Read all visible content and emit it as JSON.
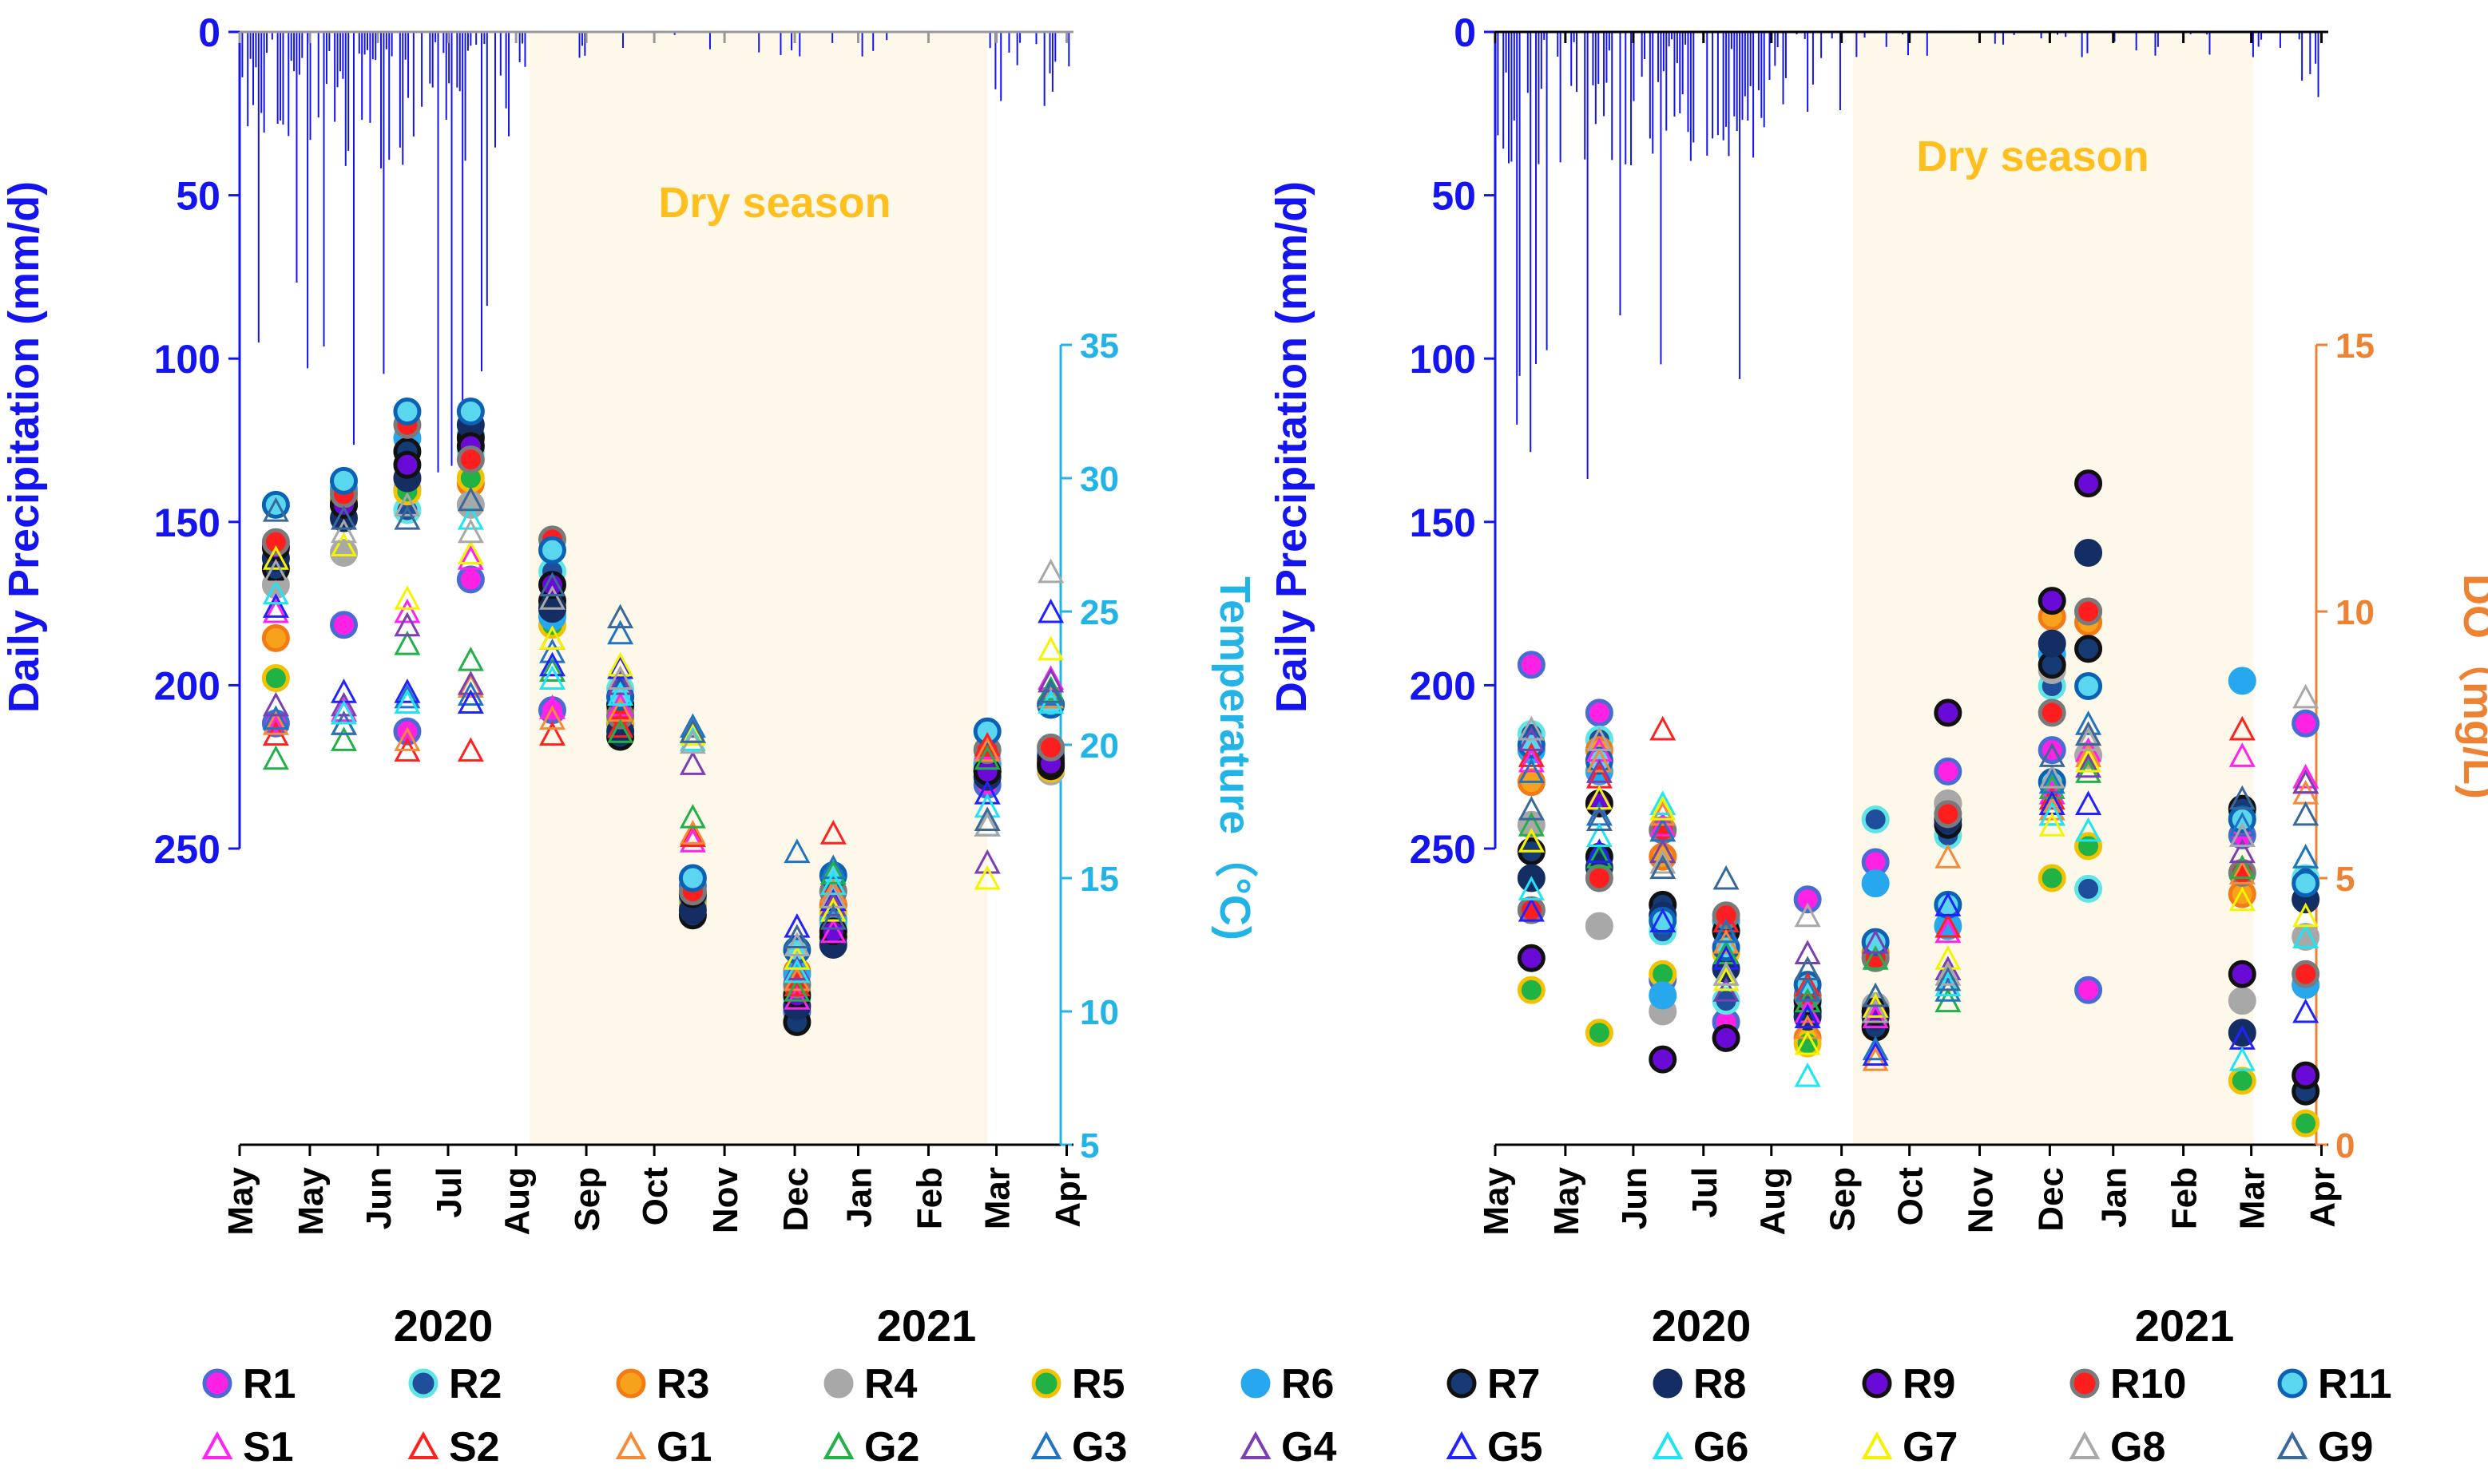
{
  "colors": {
    "precip": "#1414f0",
    "temp": "#22b4e6",
    "do": "#ee8233",
    "dry": "#fdf8ea",
    "dry_text": "#ffc01f",
    "text": "#000000"
  },
  "years": [
    "2020",
    "2021"
  ],
  "legend": {
    "circles": [
      {
        "label": "R1",
        "fill": "#ff22e4",
        "stroke": "#4a6ad6"
      },
      {
        "label": "R2",
        "fill": "#1f4f9c",
        "stroke": "#5ee6e6"
      },
      {
        "label": "R3",
        "fill": "#f7a21c",
        "stroke": "#f47a14"
      },
      {
        "label": "R4",
        "fill": "#a8a8a8",
        "stroke": "#a8a8a8"
      },
      {
        "label": "R5",
        "fill": "#20b244",
        "stroke": "#f2c200"
      },
      {
        "label": "R6",
        "fill": "#27a7ee",
        "stroke": "#27a7ee"
      },
      {
        "label": "R7",
        "fill": "#153a76",
        "stroke": "#111111"
      },
      {
        "label": "R8",
        "fill": "#142e64",
        "stroke": "#142e64"
      },
      {
        "label": "R9",
        "fill": "#6a0ad6",
        "stroke": "#111111"
      },
      {
        "label": "R10",
        "fill": "#ff1e1e",
        "stroke": "#7a7a7a"
      },
      {
        "label": "R11",
        "fill": "#5ad6ee",
        "stroke": "#0b62b4"
      }
    ],
    "triangles": [
      {
        "label": "S1",
        "stroke": "#ff22f0"
      },
      {
        "label": "S2",
        "stroke": "#ff2020"
      },
      {
        "label": "G1",
        "stroke": "#f58a38"
      },
      {
        "label": "G2",
        "stroke": "#22b04a"
      },
      {
        "label": "G3",
        "stroke": "#1f74c4"
      },
      {
        "label": "G4",
        "stroke": "#7a3fb0"
      },
      {
        "label": "G5",
        "stroke": "#2222ff"
      },
      {
        "label": "G6",
        "stroke": "#1ee4f4"
      },
      {
        "label": "G7",
        "stroke": "#f4f400"
      },
      {
        "label": "G8",
        "stroke": "#a8a8a8"
      },
      {
        "label": "G9",
        "stroke": "#3a6898"
      }
    ]
  },
  "chart_data": [
    {
      "type": "scatter",
      "panel": "temperature",
      "title": "",
      "xlabel": "",
      "x_tick_labels": [
        "May",
        "May",
        "Jun",
        "Jul",
        "Aug",
        "Sep",
        "Oct",
        "Nov",
        "Dec",
        "Jan",
        "Feb",
        "Mar",
        "Apr"
      ],
      "x_ticks_days": [
        0,
        31,
        61,
        92,
        122,
        153,
        183,
        214,
        245,
        273,
        304,
        334,
        365
      ],
      "sample_days": [
        16,
        46,
        74,
        102,
        138,
        168,
        200,
        246,
        262,
        330,
        358
      ],
      "dry_season": {
        "label": "Dry season",
        "start_day": 128,
        "end_day": 330
      },
      "precip_axis": {
        "label": "Daily Precipitation (mm/d)",
        "range": [
          0,
          250
        ],
        "ticks": [
          0,
          50,
          100,
          150,
          200,
          250
        ]
      },
      "y2": {
        "label": "Temperature（°C)",
        "range": [
          5,
          35
        ],
        "ticks": [
          5,
          10,
          15,
          20,
          25,
          30,
          35
        ]
      },
      "series": [
        {
          "name": "R1",
          "marker": "circle",
          "values": [
            20.8,
            24.5,
            20.5,
            26.2,
            21.3,
            20.8,
            14.7,
            10.0,
            14.0,
            18.5,
            19.7
          ]
        },
        {
          "name": "R2",
          "marker": "circle",
          "values": [
            27.0,
            29.5,
            28.8,
            31.0,
            26.5,
            22.1,
            15.0,
            10.5,
            13.2,
            19.4,
            19.9
          ]
        },
        {
          "name": "R3",
          "marker": "circle",
          "values": [
            24.0,
            29.2,
            30.0,
            29.8,
            25.2,
            21.3,
            14.2,
            11.5,
            14.0,
            19.3,
            19.4
          ]
        },
        {
          "name": "R4",
          "marker": "circle",
          "values": [
            26.0,
            27.2,
            29.6,
            29.0,
            25.0,
            21.0,
            14.0,
            11.0,
            13.5,
            19.3,
            19.0
          ]
        },
        {
          "name": "R5",
          "marker": "circle",
          "values": [
            22.5,
            29.0,
            29.5,
            30.0,
            24.5,
            20.9,
            14.1,
            10.7,
            13.7,
            19.1,
            19.1
          ]
        },
        {
          "name": "R6",
          "marker": "circle",
          "values": [
            27.5,
            29.6,
            31.5,
            31.6,
            24.8,
            21.8,
            14.3,
            11.4,
            13.4,
            19.2,
            19.6
          ]
        },
        {
          "name": "R7",
          "marker": "circle",
          "values": [
            26.6,
            29.0,
            31.0,
            31.5,
            25.4,
            20.3,
            13.6,
            9.6,
            12.8,
            19.0,
            19.2
          ]
        },
        {
          "name": "R8",
          "marker": "circle",
          "values": [
            27.0,
            28.5,
            30.0,
            32.0,
            25.1,
            20.5,
            13.8,
            10.2,
            12.5,
            18.8,
            19.5
          ]
        },
        {
          "name": "R9",
          "marker": "circle",
          "values": [
            27.4,
            29.0,
            30.5,
            31.2,
            26.0,
            21.5,
            14.4,
            10.6,
            13.0,
            19.0,
            19.3
          ]
        },
        {
          "name": "R10",
          "marker": "circle",
          "values": [
            27.6,
            29.4,
            32.0,
            30.7,
            27.7,
            21.1,
            14.5,
            11.0,
            14.5,
            19.8,
            19.9
          ]
        },
        {
          "name": "R11",
          "marker": "circle",
          "values": [
            29.0,
            29.9,
            32.5,
            32.5,
            27.3,
            21.8,
            15.0,
            12.3,
            15.1,
            20.5,
            21.5
          ]
        },
        {
          "name": "S1",
          "marker": "triangle",
          "values": [
            25.0,
            21.3,
            25.0,
            27.0,
            21.4,
            21.5,
            16.4,
            10.5,
            13.0,
            19.9,
            22.5
          ]
        },
        {
          "name": "S2",
          "marker": "triangle",
          "values": [
            20.4,
            20.8,
            19.8,
            19.8,
            20.4,
            20.7,
            16.6,
            11.0,
            16.7,
            20.0,
            22.0
          ]
        },
        {
          "name": "G1",
          "marker": "triangle",
          "values": [
            20.8,
            21.2,
            20.2,
            22.2,
            21.0,
            21.3,
            16.7,
            11.2,
            14.5,
            19.8,
            21.8
          ]
        },
        {
          "name": "G2",
          "marker": "triangle",
          "values": [
            19.5,
            20.2,
            23.8,
            23.2,
            22.8,
            20.5,
            17.3,
            10.8,
            15.2,
            19.5,
            22.1
          ]
        },
        {
          "name": "G3",
          "marker": "triangle",
          "values": [
            21.0,
            20.8,
            21.8,
            21.9,
            23.5,
            24.2,
            20.7,
            16.0,
            15.4,
            17.0,
            21.9
          ]
        },
        {
          "name": "G4",
          "marker": "triangle",
          "values": [
            21.5,
            21.5,
            24.5,
            22.3,
            24.0,
            22.3,
            19.3,
            11.6,
            14.0,
            15.6,
            22.4
          ]
        },
        {
          "name": "G5",
          "marker": "triangle",
          "values": [
            25.2,
            22.0,
            22.0,
            21.6,
            23.0,
            22.9,
            20.5,
            13.2,
            14.2,
            18.2,
            25.0
          ]
        },
        {
          "name": "G6",
          "marker": "triangle",
          "values": [
            25.7,
            21.2,
            21.6,
            28.5,
            22.5,
            21.9,
            20.2,
            11.5,
            14.8,
            17.7,
            21.6
          ]
        },
        {
          "name": "G7",
          "marker": "triangle",
          "values": [
            27.0,
            27.5,
            25.5,
            27.2,
            24.0,
            23.0,
            20.4,
            12.0,
            13.8,
            15.0,
            23.6
          ]
        },
        {
          "name": "G8",
          "marker": "triangle",
          "values": [
            26.5,
            28.0,
            29.0,
            28.0,
            25.5,
            22.5,
            20.1,
            12.5,
            14.3,
            17.0,
            26.5
          ]
        },
        {
          "name": "G9",
          "marker": "triangle",
          "values": [
            28.8,
            28.5,
            28.5,
            29.2,
            26.0,
            24.8,
            20.5,
            12.8,
            13.5,
            17.2,
            22.0
          ]
        }
      ]
    },
    {
      "type": "scatter",
      "panel": "dissolved-oxygen",
      "title": "",
      "xlabel": "",
      "x_tick_labels": [
        "May",
        "May",
        "Jun",
        "Jul",
        "Aug",
        "Sep",
        "Oct",
        "Nov",
        "Dec",
        "Jan",
        "Feb",
        "Mar",
        "Apr"
      ],
      "x_ticks_days": [
        0,
        31,
        61,
        92,
        122,
        153,
        183,
        214,
        245,
        273,
        304,
        334,
        365
      ],
      "sample_days": [
        16,
        46,
        74,
        102,
        138,
        168,
        200,
        246,
        262,
        330,
        358
      ],
      "dry_season": {
        "label": "Dry season",
        "start_day": 158,
        "end_day": 335
      },
      "precip_axis": {
        "label": "Daily Precipitation (mm/d)",
        "range": [
          0,
          250
        ],
        "ticks": [
          0,
          50,
          100,
          150,
          200,
          250
        ]
      },
      "y2": {
        "label": "DO（mg/L)",
        "range": [
          0,
          15
        ],
        "ticks": [
          0,
          5,
          10,
          15
        ]
      },
      "series": [
        {
          "name": "R1",
          "marker": "circle",
          "values": [
            9.0,
            8.1,
            3.1,
            2.3,
            4.6,
            5.3,
            7.0,
            7.4,
            2.9,
            5.8,
            7.9
          ]
        },
        {
          "name": "R2",
          "marker": "circle",
          "values": [
            7.7,
            7.6,
            4.0,
            2.7,
            2.6,
            6.1,
            5.8,
            8.6,
            4.8,
            6.2,
            5.0
          ]
        },
        {
          "name": "R3",
          "marker": "circle",
          "values": [
            6.8,
            7.4,
            5.4,
            4.2,
            2.0,
            3.6,
            6.4,
            9.9,
            9.8,
            4.7,
            3.0
          ]
        },
        {
          "name": "R4",
          "marker": "circle",
          "values": [
            6.0,
            4.1,
            2.5,
            4.0,
            2.4,
            2.6,
            6.4,
            8.9,
            7.3,
            2.7,
            3.9
          ]
        },
        {
          "name": "R5",
          "marker": "circle",
          "values": [
            2.9,
            2.1,
            3.2,
            3.6,
            1.9,
            2.2,
            4.5,
            5.0,
            5.6,
            1.2,
            0.4
          ]
        },
        {
          "name": "R6",
          "marker": "circle",
          "values": [
            7.4,
            7.0,
            2.8,
            4.2,
            2.7,
            4.9,
            4.1,
            9.2,
            10.0,
            8.7,
            3.0
          ]
        },
        {
          "name": "R7",
          "marker": "circle",
          "values": [
            5.5,
            5.4,
            4.5,
            4.0,
            2.5,
            2.2,
            6.0,
            9.0,
            9.3,
            6.3,
            1.0
          ]
        },
        {
          "name": "R8",
          "marker": "circle",
          "values": [
            5.0,
            5.2,
            4.3,
            3.3,
            2.4,
            2.4,
            6.1,
            9.4,
            11.1,
            2.1,
            4.6
          ]
        },
        {
          "name": "R9",
          "marker": "circle",
          "values": [
            3.5,
            6.4,
            1.6,
            2.0,
            2.7,
            2.5,
            8.1,
            10.2,
            12.4,
            3.2,
            1.3
          ]
        },
        {
          "name": "R10",
          "marker": "circle",
          "values": [
            4.4,
            5.0,
            5.9,
            4.3,
            2.8,
            3.5,
            6.2,
            8.1,
            10.0,
            5.1,
            3.2
          ]
        },
        {
          "name": "R11",
          "marker": "circle",
          "values": [
            7.5,
            7.2,
            4.2,
            3.7,
            3.0,
            3.8,
            4.5,
            6.8,
            8.6,
            6.1,
            4.9
          ]
        },
        {
          "name": "S1",
          "marker": "triangle",
          "values": [
            7.2,
            7.4,
            6.0,
            4.2,
            2.5,
            2.4,
            4.0,
            6.6,
            7.4,
            7.3,
            6.9
          ]
        },
        {
          "name": "S2",
          "marker": "triangle",
          "values": [
            7.3,
            6.9,
            7.8,
            4.2,
            3.0,
            2.5,
            4.1,
            6.5,
            7.7,
            7.8,
            6.8
          ]
        },
        {
          "name": "G1",
          "marker": "triangle",
          "values": [
            5.7,
            7.2,
            6.2,
            3.8,
            2.2,
            1.6,
            5.4,
            6.3,
            7.3,
            5.1,
            6.6
          ]
        },
        {
          "name": "G2",
          "marker": "triangle",
          "values": [
            6.0,
            5.4,
            5.5,
            3.6,
            2.7,
            3.5,
            2.7,
            6.7,
            7.0,
            5.2,
            5.4
          ]
        },
        {
          "name": "G3",
          "marker": "triangle",
          "values": [
            7.0,
            6.2,
            5.9,
            4.0,
            2.9,
            1.8,
            2.9,
            6.8,
            7.9,
            6.0,
            5.4
          ]
        },
        {
          "name": "G4",
          "marker": "triangle",
          "values": [
            7.6,
            7.0,
            5.5,
            2.9,
            3.6,
            3.8,
            3.3,
            6.2,
            7.1,
            5.5,
            6.8
          ]
        },
        {
          "name": "G5",
          "marker": "triangle",
          "values": [
            4.4,
            5.5,
            4.2,
            3.5,
            2.4,
            1.7,
            4.5,
            6.4,
            6.4,
            2.0,
            2.5
          ]
        },
        {
          "name": "G6",
          "marker": "triangle",
          "values": [
            4.8,
            5.8,
            6.4,
            3.2,
            1.3,
            2.8,
            3.0,
            6.2,
            5.9,
            1.6,
            3.9
          ]
        },
        {
          "name": "G7",
          "marker": "triangle",
          "values": [
            5.7,
            6.5,
            6.3,
            3.1,
            1.9,
            2.6,
            3.5,
            6.0,
            7.2,
            4.6,
            4.3
          ]
        },
        {
          "name": "G8",
          "marker": "triangle",
          "values": [
            7.8,
            7.6,
            5.3,
            3.2,
            4.3,
            2.5,
            3.2,
            6.9,
            7.6,
            5.8,
            8.4
          ]
        },
        {
          "name": "G9",
          "marker": "triangle",
          "values": [
            6.3,
            6.1,
            5.2,
            5.0,
            3.3,
            2.8,
            3.1,
            7.3,
            7.7,
            6.5,
            6.2
          ]
        }
      ]
    }
  ]
}
